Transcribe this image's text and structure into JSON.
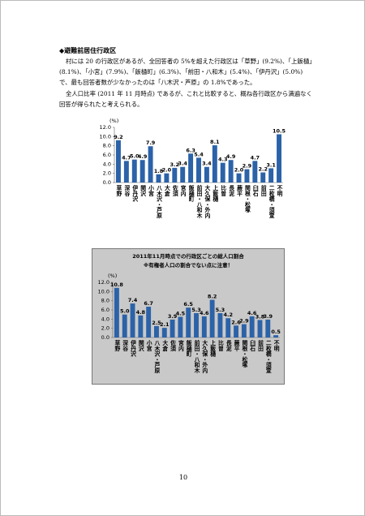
{
  "heading": "◆避難前居住行政区",
  "paragraphs": [
    "村には 20 の行政区があるが、全回答者の 5%を超えた行政区は「草野」(9.2%)、「上飯樋」(8.1%)、「小宮」(7.9%)、「飯樋町」(6.3%)、「前田・八和木」(5.4%)、「伊丹沢」(5.0%) で、最も回答者数が少なかったのは「八木沢・芦原」の 1.8%であった。",
    "全人口比率 (2011 年 11 月時点) であるが、これと比較すると、概ね各行政区から満遍なく回答が得られたと考えられる。"
  ],
  "page_number": "10",
  "chart_data": [
    {
      "type": "bar",
      "y_unit": "(%)",
      "categories": [
        "草野",
        "深谷",
        "伊丹沢",
        "関沢",
        "小宮",
        "八木沢・芦原",
        "大倉",
        "佐須",
        "宮内",
        "飯樋町",
        "前田・八和木",
        "大久保・外内",
        "上飯樋",
        "比曽",
        "長泥",
        "蕨平",
        "関根・松塚",
        "臼石",
        "前田",
        "二枚橋・須萱",
        "不明"
      ],
      "values": [
        9.2,
        4.7,
        5.0,
        4.9,
        7.9,
        1.8,
        2.0,
        3.2,
        3.4,
        6.3,
        5.4,
        3.4,
        8.1,
        4.3,
        4.9,
        2.0,
        2.9,
        4.7,
        2.2,
        3.1,
        10.5
      ],
      "value_labels": [
        "9.2",
        "4.7",
        "5.0",
        "4.9",
        "7.9",
        "1.8",
        "2.0",
        "3.2",
        "3.4",
        "6.3",
        "5.4",
        "3.4",
        "8.1",
        "4.3",
        "4.9",
        "2.0",
        "2.9",
        "4.7",
        "2.2",
        "3.1",
        "10.5"
      ],
      "color": "#2b62a8",
      "ylim": [
        0,
        12
      ],
      "yticks": [
        {
          "value": 0,
          "label": "0.0"
        },
        {
          "value": 2,
          "label": "2.0"
        },
        {
          "value": 4,
          "label": "4.0"
        },
        {
          "value": 6,
          "label": "6.0"
        },
        {
          "value": 8,
          "label": "8.0"
        },
        {
          "value": 10,
          "label": "10.0"
        },
        {
          "value": 12,
          "label": "12.0"
        }
      ],
      "grid": false
    },
    {
      "type": "bar",
      "title": "2011年11月時点での行政区ごとの総人口割合",
      "subtitle": "※有権者人口の割合でない点に注意！",
      "y_unit": "(%)",
      "categories": [
        "草野",
        "深谷",
        "伊丹沢",
        "関沢",
        "小宮",
        "八木沢・芦原",
        "大倉",
        "佐須",
        "宮内",
        "飯樋町",
        "前田・八和木",
        "大久保・外内",
        "上飯樋",
        "比曽",
        "長泥",
        "蕨平",
        "関根・松塚",
        "臼石",
        "前田",
        "二枚橋・須萱",
        "不明"
      ],
      "values": [
        10.8,
        5.0,
        7.4,
        4.8,
        6.7,
        2.5,
        2.1,
        3.9,
        4.5,
        6.5,
        5.3,
        4.6,
        8.2,
        5.3,
        4.2,
        2.6,
        2.9,
        4.6,
        3.8,
        3.9,
        0.5
      ],
      "value_labels": [
        "10.8",
        "5.0",
        "7.4",
        "4.8",
        "6.7",
        "2.5",
        "2.1",
        "3.9",
        "4.5",
        "6.5",
        "5.3",
        "4.6",
        "8.2",
        "5.3",
        "4.2",
        "2.6",
        "2.9",
        "4.6",
        "3.8",
        "3.9",
        "0.5"
      ],
      "color": "#2b62a8",
      "background": "#c9c9c9",
      "ylim": [
        0,
        12
      ],
      "yticks": [
        {
          "value": 0,
          "label": "0.0"
        },
        {
          "value": 2,
          "label": "2.0"
        },
        {
          "value": 4,
          "label": "4.0"
        },
        {
          "value": 6,
          "label": "6.0"
        },
        {
          "value": 8,
          "label": "8.0"
        },
        {
          "value": 10,
          "label": "10.0"
        },
        {
          "value": 12,
          "label": "12.0"
        }
      ],
      "grid": false
    }
  ]
}
